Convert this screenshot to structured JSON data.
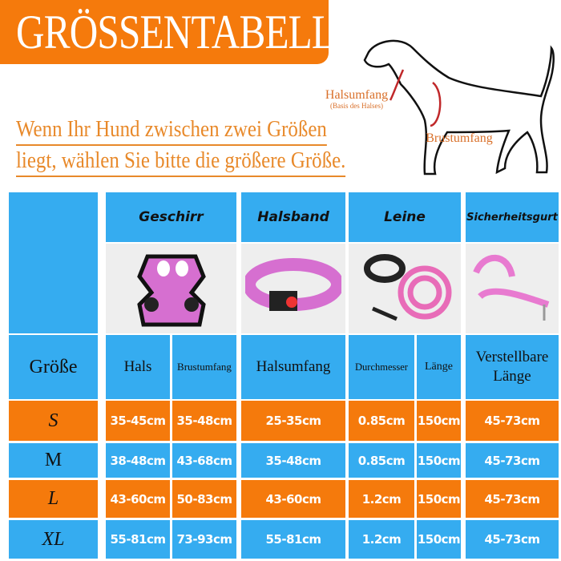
{
  "title": "GRÖSSENTABELLE",
  "note": {
    "line1": "Wenn Ihr Hund zwischen zwei Größen",
    "line2": "liegt, wählen Sie bitte die größere Größe."
  },
  "diagram": {
    "neck_label": "Halsumfang",
    "neck_sub": "(Basis des Halses)",
    "chest_label": "Brustumfang"
  },
  "colors": {
    "blue": "#35acf0",
    "orange": "#f57a0c",
    "title_text": "#e8892a"
  },
  "table": {
    "products": [
      "Geschirr",
      "Halsband",
      "Leine",
      "Sicherheitsgurt"
    ],
    "product_images": [
      "harness-image",
      "collar-image",
      "leash-image",
      "seatbelt-image"
    ],
    "columns": [
      "Größe",
      "Hals",
      "Brustumfang",
      "Halsumfang",
      "Durchmesser",
      "Länge",
      "Verstellbare Länge"
    ],
    "rows": [
      {
        "size": "S",
        "cells": [
          "35-45cm",
          "35-48cm",
          "25-35cm",
          "0.85cm",
          "150cm",
          "45-73cm"
        ]
      },
      {
        "size": "M",
        "cells": [
          "38-48cm",
          "43-68cm",
          "35-48cm",
          "0.85cm",
          "150cm",
          "45-73cm"
        ]
      },
      {
        "size": "L",
        "cells": [
          "43-60cm",
          "50-83cm",
          "43-60cm",
          "1.2cm",
          "150cm",
          "45-73cm"
        ]
      },
      {
        "size": "XL",
        "cells": [
          "55-81cm",
          "73-93cm",
          "55-81cm",
          "1.2cm",
          "150cm",
          "45-73cm"
        ]
      }
    ]
  }
}
